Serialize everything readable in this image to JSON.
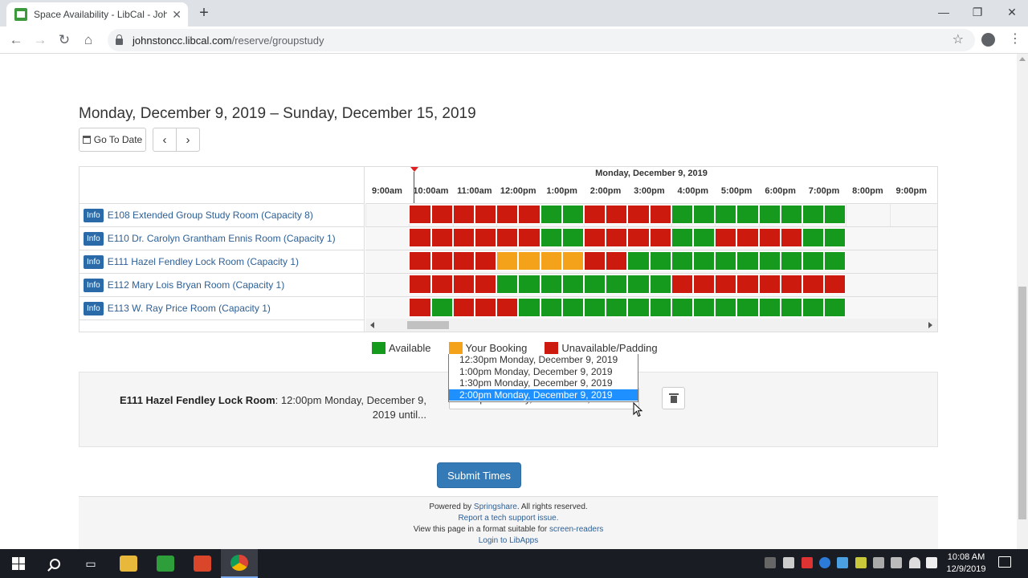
{
  "browser": {
    "tab_title": "Space Availability - LibCal - Johnston",
    "url_host": "johnstoncc.libcal.com",
    "url_path": "/reserve/groupstudy"
  },
  "page": {
    "heading": "Monday, December 9, 2019 – Sunday, December 15, 2019",
    "go_to_date_label": "Go To Date",
    "day_header": "Monday, December 9, 2019",
    "hours": [
      "9:00am",
      "10:00am",
      "11:00am",
      "12:00pm",
      "1:00pm",
      "2:00pm",
      "3:00pm",
      "4:00pm",
      "5:00pm",
      "6:00pm",
      "7:00pm",
      "8:00pm",
      "9:00pm"
    ],
    "rooms": [
      {
        "info": "Info",
        "name": "E108 Extended Group Study Room (Capacity 8)",
        "slots": "RRRRRRGGRRRRGGGGGGGG"
      },
      {
        "info": "Info",
        "name": "E110 Dr. Carolyn Grantham Ennis Room (Capacity 1)",
        "slots": "RRRRRRGGRRRRGGRRRRGG"
      },
      {
        "info": "Info",
        "name": "E111 Hazel Fendley Lock Room (Capacity 1)",
        "slots": "RRRRYYYYRRGGGGGGGGGG"
      },
      {
        "info": "Info",
        "name": "E112 Mary Lois Bryan Room (Capacity 1)",
        "slots": "RRRRGGGGGGGGRRRRRRRR"
      },
      {
        "info": "Info",
        "name": "E113 W. Ray Price Room (Capacity 1)",
        "slots": "RGRRRGGGGGGGGGGGGGGG"
      }
    ],
    "legend": [
      {
        "label": "Available",
        "color": "#159a1e"
      },
      {
        "label": "Your Booking",
        "color": "#f5a21b"
      },
      {
        "label": "Unavailable/Padding",
        "color": "#cc1a0f"
      }
    ],
    "booking": {
      "room": "E111 Hazel Fendley Lock Room",
      "rest": ": 12:00pm Monday, December 9, 2019 until...",
      "selected": "2:00pm Monday, December 9, 2019",
      "options": [
        "12:30pm Monday, December 9, 2019",
        "1:00pm Monday, December 9, 2019",
        "1:30pm Monday, December 9, 2019",
        "2:00pm Monday, December 9, 2019"
      ]
    },
    "submit_label": "Submit Times",
    "footer": {
      "powered_prefix": "Powered by",
      "powered_link": "Springshare",
      "powered_suffix": ". All rights reserved.",
      "report_link": "Report a tech support issue.",
      "view_prefix": "View this page in a format suitable for",
      "view_link": "screen-readers",
      "login_link": "Login to LibApps"
    }
  },
  "taskbar": {
    "time": "10:08 AM",
    "date": "12/9/2019"
  },
  "colors": {
    "R": "#cc1a0f",
    "G": "#159a1e",
    "Y": "#f5a21b"
  }
}
